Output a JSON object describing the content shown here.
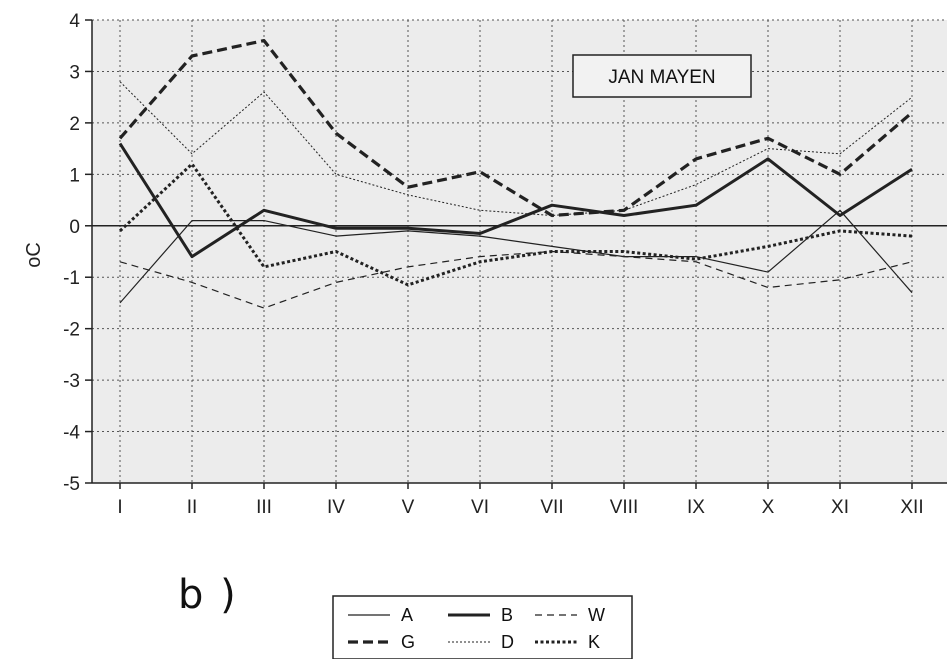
{
  "panel_label": "b )",
  "chart_data": {
    "type": "line",
    "title": "JAN MAYEN",
    "ylabel": "oC",
    "xlabel": "",
    "categories": [
      "I",
      "II",
      "III",
      "IV",
      "V",
      "VI",
      "VII",
      "VIII",
      "IX",
      "X",
      "XI",
      "XII"
    ],
    "ylim": [
      -5,
      4
    ],
    "yticks": [
      4,
      3,
      2,
      1,
      0,
      -1,
      -2,
      -3,
      -4,
      -5
    ],
    "grid": true,
    "legend_position": "bottom-center",
    "series": [
      {
        "name": "A",
        "style": "thin-solid",
        "values": [
          -1.5,
          0.1,
          0.1,
          -0.2,
          -0.1,
          -0.2,
          -0.4,
          -0.6,
          -0.6,
          -0.9,
          0.3,
          -1.3
        ]
      },
      {
        "name": "B",
        "style": "thick-solid",
        "values": [
          1.6,
          -0.6,
          0.3,
          -0.05,
          -0.05,
          -0.15,
          0.4,
          0.2,
          0.4,
          1.3,
          0.2,
          1.1
        ]
      },
      {
        "name": "W",
        "style": "thin-dashed",
        "values": [
          -0.7,
          -1.1,
          -1.6,
          -1.1,
          -0.8,
          -0.6,
          -0.5,
          -0.6,
          -0.7,
          -1.2,
          -1.05,
          -0.7
        ]
      },
      {
        "name": "G",
        "style": "thick-dashed",
        "values": [
          1.7,
          3.3,
          3.6,
          1.8,
          0.75,
          1.05,
          0.2,
          0.3,
          1.3,
          1.7,
          1.0,
          2.2
        ]
      },
      {
        "name": "D",
        "style": "thin-dotted",
        "values": [
          2.8,
          1.4,
          2.6,
          1.0,
          0.6,
          0.3,
          0.2,
          0.3,
          0.8,
          1.5,
          1.4,
          2.5
        ]
      },
      {
        "name": "K",
        "style": "thick-dotted",
        "values": [
          -0.1,
          1.2,
          -0.8,
          -0.5,
          -1.15,
          -0.7,
          -0.5,
          -0.5,
          -0.65,
          -0.4,
          -0.1,
          -0.2
        ]
      }
    ]
  }
}
